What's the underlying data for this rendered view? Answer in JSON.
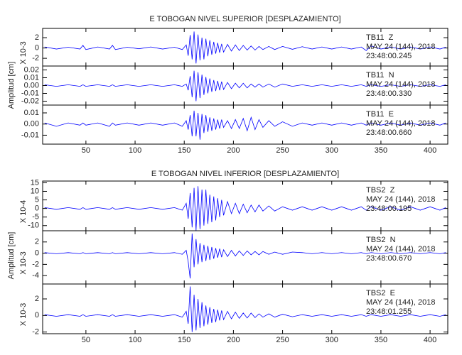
{
  "chart_data": [
    {
      "type": "line",
      "title": "E TOBOGAN NIVEL SUPERIOR [DESPLAZAMIENTO]",
      "y_label": "Amplitud [cm]",
      "xlim": [
        6,
        418
      ],
      "xticks": [
        50,
        100,
        150,
        200,
        250,
        300,
        350,
        400
      ],
      "x": [
        8,
        20,
        32,
        44,
        47,
        50,
        62,
        74,
        77,
        80,
        92,
        104,
        116,
        128,
        140,
        148,
        152,
        154,
        156,
        158,
        160,
        162,
        164,
        166,
        168,
        170,
        172,
        174,
        176,
        178,
        180,
        182,
        184,
        186,
        188,
        190,
        194,
        198,
        202,
        206,
        210,
        214,
        218,
        222,
        226,
        230,
        236,
        242,
        250,
        260,
        270,
        280,
        290,
        300,
        310,
        320,
        330,
        335,
        340,
        350,
        360,
        370,
        380,
        390,
        400,
        410,
        416
      ],
      "panels": [
        {
          "scale_label": "X 10-3",
          "station": "TB11  Z",
          "date": "MAY 24 (144), 2018",
          "time": "23:48:00.245",
          "color": "#0000ff",
          "ylim": [
            -3.5,
            3.8
          ],
          "yticks": [
            -2,
            0,
            2
          ],
          "values": [
            0.2,
            -0.2,
            0.15,
            -0.2,
            0.5,
            -0.3,
            0.2,
            -0.2,
            0.5,
            -0.3,
            0.15,
            -0.15,
            0.2,
            -0.2,
            0.15,
            -0.3,
            0.6,
            -1.5,
            2.5,
            -2.2,
            3.2,
            -3.0,
            2.6,
            -2.4,
            2.0,
            -2.2,
            1.8,
            -1.6,
            1.5,
            -1.3,
            1.2,
            -1.1,
            1.0,
            -0.9,
            0.8,
            -0.8,
            0.7,
            -0.6,
            0.6,
            -0.5,
            0.5,
            -0.4,
            0.4,
            -0.4,
            0.3,
            -0.3,
            0.3,
            -0.3,
            0.3,
            -0.25,
            0.25,
            -0.2,
            0.2,
            -0.2,
            0.2,
            -0.2,
            0.2,
            -0.5,
            0.4,
            -0.2,
            0.2,
            -0.2,
            0.2,
            -0.2,
            0.2,
            -0.2,
            0.15
          ]
        },
        {
          "station": "TB11  N",
          "date": "MAY 24 (144), 2018",
          "time": "23:48:00.330",
          "color": "#0000ff",
          "ylim": [
            -0.025,
            0.025
          ],
          "yticks": [
            -0.02,
            -0.01,
            {
              "value": 0,
              "label": "0.00"
            },
            0.01,
            0.02
          ],
          "values": [
            0.001,
            -0.001,
            0.001,
            -0.001,
            0.001,
            -0.001,
            0.001,
            -0.001,
            0.001,
            -0.001,
            0.001,
            -0.001,
            0.001,
            -0.001,
            0.001,
            -0.001,
            0.002,
            -0.006,
            0.012,
            -0.015,
            0.019,
            -0.02,
            0.017,
            -0.016,
            0.014,
            -0.012,
            0.011,
            -0.01,
            0.009,
            -0.008,
            0.007,
            -0.007,
            0.006,
            -0.006,
            0.005,
            -0.005,
            0.004,
            -0.004,
            0.003,
            -0.003,
            0.003,
            -0.003,
            0.002,
            -0.002,
            0.002,
            -0.002,
            0.002,
            -0.002,
            0.002,
            -0.001,
            0.001,
            -0.001,
            0.001,
            -0.001,
            0.001,
            -0.001,
            0.001,
            -0.001,
            0.001,
            -0.001,
            0.001,
            -0.001,
            0.001,
            -0.001,
            0.001,
            -0.001,
            0.001
          ]
        },
        {
          "station": "TB11  E",
          "date": "MAY 24 (144), 2018",
          "time": "23:48:00.660",
          "color": "#0000ff",
          "ylim": [
            -0.018,
            0.017
          ],
          "yticks": [
            -0.01,
            {
              "value": 0,
              "label": "0.00"
            },
            0.01
          ],
          "values": [
            0.001,
            -0.002,
            0.001,
            -0.001,
            0.001,
            -0.001,
            0.001,
            -0.002,
            0.001,
            -0.001,
            0.001,
            -0.001,
            0.001,
            -0.001,
            0.001,
            -0.002,
            0.003,
            -0.005,
            0.008,
            -0.011,
            0.012,
            -0.011,
            0.01,
            -0.014,
            0.009,
            -0.008,
            0.008,
            -0.007,
            0.006,
            -0.006,
            0.005,
            -0.005,
            0.004,
            -0.004,
            0.004,
            -0.003,
            0.003,
            -0.004,
            0.004,
            -0.004,
            0.005,
            -0.006,
            0.006,
            -0.005,
            0.004,
            -0.003,
            0.003,
            -0.002,
            0.002,
            -0.002,
            0.001,
            -0.001,
            0.001,
            -0.001,
            0.001,
            -0.001,
            0.001,
            -0.001,
            0.001,
            -0.001,
            0.001,
            -0.001,
            0.001,
            -0.001,
            0.001,
            -0.001,
            0.001
          ]
        }
      ]
    },
    {
      "type": "line",
      "title": "E TOBOGAN NIVEL INFERIOR [DESPLAZAMIENTO]",
      "y_label": "Amplitud [cm]",
      "xlim": [
        6,
        418
      ],
      "xticks": [
        50,
        100,
        150,
        200,
        250,
        300,
        350,
        400
      ],
      "x": [
        8,
        20,
        32,
        44,
        47,
        50,
        62,
        74,
        77,
        80,
        92,
        104,
        116,
        128,
        140,
        148,
        152,
        154,
        156,
        158,
        160,
        162,
        164,
        166,
        168,
        170,
        172,
        174,
        176,
        178,
        180,
        182,
        184,
        186,
        188,
        190,
        194,
        198,
        202,
        206,
        210,
        214,
        218,
        222,
        226,
        230,
        236,
        242,
        250,
        260,
        270,
        280,
        290,
        300,
        310,
        320,
        330,
        335,
        340,
        350,
        360,
        370,
        380,
        390,
        400,
        410,
        416
      ],
      "panels": [
        {
          "scale_label": "X 10-4",
          "station": "TBS2  Z",
          "date": "MAY 24 (144), 2018",
          "time": "23:48:00.195",
          "color": "#0000ff",
          "ylim": [
            -13,
            16
          ],
          "yticks": [
            -10,
            -5,
            0,
            5,
            10,
            15
          ],
          "values": [
            0.5,
            -0.5,
            0.5,
            -0.5,
            0.5,
            -0.5,
            0.5,
            -0.5,
            0.5,
            -0.5,
            0.5,
            -0.5,
            0.5,
            -0.5,
            0.5,
            -1,
            3,
            -6,
            9,
            -11,
            12,
            -13,
            13,
            -12,
            11,
            -10,
            11,
            -9,
            8,
            -8,
            7,
            -7,
            6,
            -5,
            5,
            -4,
            4,
            -3,
            3,
            -3,
            2.5,
            -2.5,
            2,
            -2,
            2,
            -1.5,
            1.5,
            -1.5,
            1,
            -1,
            1,
            -1,
            1,
            -1,
            1,
            -1,
            1,
            -1,
            1,
            -1,
            1,
            -1,
            1,
            -1,
            1,
            -1,
            0.5
          ]
        },
        {
          "scale_label": "X 10-3",
          "station": "TBS2  N",
          "date": "MAY 24 (144), 2018",
          "time": "23:48:00.670",
          "color": "#0000ff",
          "ylim": [
            -5.5,
            4
          ],
          "yticks": [
            -4,
            -2,
            0,
            2
          ],
          "values": [
            0.1,
            -0.1,
            0.1,
            -0.1,
            0.1,
            -0.1,
            0.1,
            -0.1,
            0.1,
            -0.1,
            0.1,
            -0.1,
            0.1,
            -0.1,
            0.1,
            -0.2,
            0.5,
            -1.5,
            -4.5,
            3.5,
            -2.5,
            2.5,
            -2,
            1.8,
            -1.6,
            1.5,
            -1.4,
            1.3,
            -1.2,
            1.1,
            -1,
            0.9,
            -0.8,
            0.8,
            -0.7,
            0.6,
            -0.6,
            0.5,
            -0.5,
            0.4,
            -0.4,
            0.4,
            -0.3,
            0.3,
            -0.3,
            0.3,
            -0.2,
            0.2,
            -0.2,
            0.2,
            0.1,
            -0.1,
            0.1,
            -0.1,
            0.1,
            -0.1,
            0.1,
            -0.1,
            0.1,
            -0.1,
            0.1,
            -0.1,
            0.1,
            -0.1,
            0.1,
            -0.1,
            0.1
          ]
        },
        {
          "scale_label": "X 10-3",
          "station": "TBS2  E",
          "date": "MAY 24 (144), 2018",
          "time": "23:48:01.255",
          "color": "#0000ff",
          "ylim": [
            -2.2,
            3.8
          ],
          "yticks": [
            -2,
            0,
            2
          ],
          "values": [
            0.1,
            -0.1,
            0.1,
            -0.1,
            0.1,
            -0.1,
            0.1,
            -0.1,
            0.1,
            -0.1,
            0.1,
            -0.1,
            0.1,
            -0.1,
            0.1,
            -0.2,
            0.5,
            -1,
            3.5,
            -2,
            2.5,
            -1.8,
            2,
            -1.5,
            1.6,
            -1.3,
            1.2,
            -1.1,
            1,
            -0.9,
            0.8,
            -0.8,
            0.7,
            -0.6,
            0.6,
            -0.5,
            0.5,
            -0.4,
            0.4,
            -0.35,
            0.3,
            -0.3,
            0.3,
            -0.25,
            0.2,
            -0.2,
            0.2,
            -0.2,
            0.15,
            -0.15,
            0.1,
            -0.1,
            0.1,
            -0.1,
            0.1,
            -0.1,
            0.1,
            -0.1,
            0.1,
            -0.1,
            0.1,
            -0.1,
            0.1,
            -0.1,
            0.1,
            -0.1,
            0.1
          ]
        }
      ]
    }
  ]
}
